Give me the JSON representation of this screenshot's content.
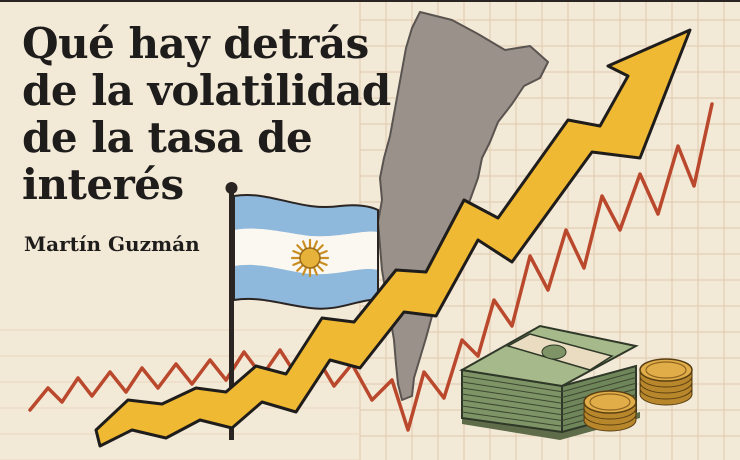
{
  "article": {
    "title_lines": [
      "Qué hay detrás",
      "de la volatilidad",
      "de la tasa de",
      "interés"
    ],
    "author": "Martín Guzmán"
  },
  "palette": {
    "background": "#f3e9d7",
    "grid": "#e2c9ad",
    "text": "#1f1d1c",
    "red_line": "#b9482c",
    "yellow_arrow": "#f0b933",
    "map": "#9a928a",
    "flag_blue": "#8fb8dd",
    "sun": "#e6b23a",
    "money": "#8aa070",
    "coin": "#d9a53f"
  },
  "illustration": {
    "icons": [
      "argentina-map-icon",
      "argentina-flag-icon",
      "rising-arrow-icon",
      "banknote-stack-icon",
      "coin-stack-icon"
    ]
  }
}
